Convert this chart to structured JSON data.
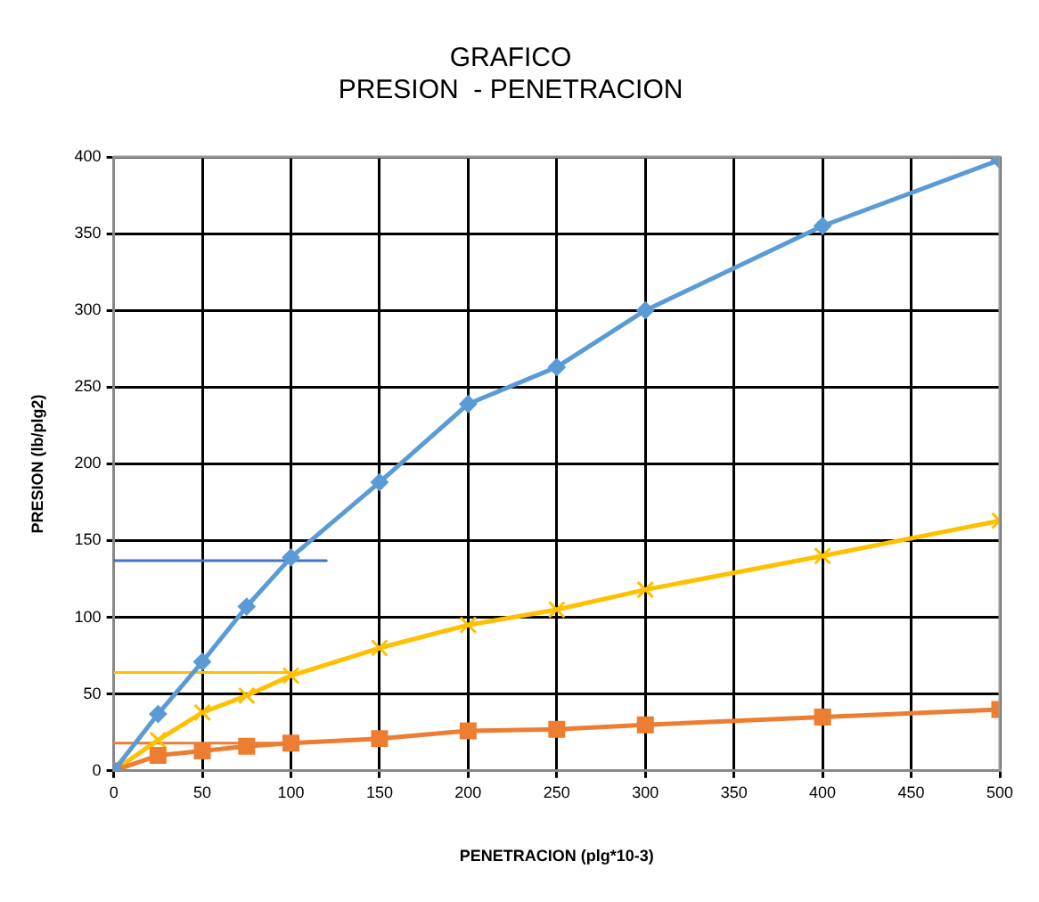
{
  "chart_data": {
    "type": "line",
    "title": "GRAFICO\nPRESION  - PENETRACION",
    "xlabel": "PENETRACION (plg*10-3)",
    "ylabel": "PRESION (lb/plg2)",
    "x": [
      0,
      25,
      50,
      75,
      100,
      150,
      200,
      250,
      300,
      400,
      500
    ],
    "series": [
      {
        "color": "#5b9bd5",
        "marker": "diamond",
        "values": [
          0,
          37,
          71,
          107,
          139,
          188,
          239,
          263,
          300,
          355,
          398
        ]
      },
      {
        "color": "#ed7d31",
        "marker": "square",
        "values": [
          0,
          10,
          13,
          16,
          18,
          21,
          26,
          27,
          30,
          35,
          40
        ]
      },
      {
        "color": "#ffc000",
        "marker": "cross",
        "values": [
          0,
          20,
          38,
          49,
          62,
          80,
          95,
          105,
          118,
          140,
          163
        ]
      },
      {
        "color": "#4472c4",
        "marker": "none",
        "x": [
          0,
          120
        ],
        "values": [
          137,
          137
        ]
      },
      {
        "color": "#ffc000",
        "marker": "none",
        "x": [
          0,
          100
        ],
        "values": [
          64,
          64
        ]
      },
      {
        "color": "#ed7d31",
        "marker": "none",
        "x": [
          0,
          100
        ],
        "values": [
          18,
          18
        ]
      }
    ],
    "xlim": [
      0,
      500
    ],
    "xticks": [
      0,
      50,
      100,
      150,
      200,
      250,
      300,
      350,
      400,
      450,
      500
    ],
    "ylim": [
      0,
      400
    ],
    "yticks": [
      0,
      50,
      100,
      150,
      200,
      250,
      300,
      350,
      400
    ],
    "grid": true,
    "legend": false
  }
}
